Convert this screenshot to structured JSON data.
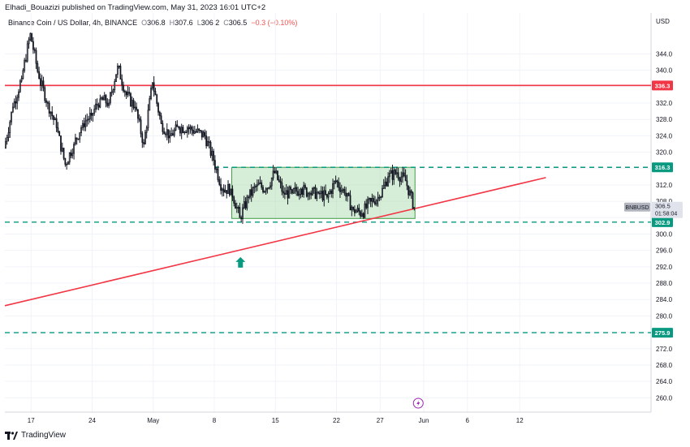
{
  "header": {
    "publisher_text": "Elhadi_Bouazizi published on TradingView.com, May 31, 2023 16:01 UTC+2"
  },
  "legend": {
    "symbol": "Binance Coin / US Dollar, 4h, BINANCE",
    "o_label": "O",
    "o_value": "306.8",
    "h_label": "H",
    "h_value": "307.6",
    "l_label": "L",
    "l_value": "306.2",
    "c_label": "C",
    "c_value": "306.5",
    "change": "−0.3 (−0.10%)"
  },
  "footer": {
    "brand": "TradingView"
  },
  "chart_data": {
    "type": "candlestick",
    "symbol": "BNBUSD",
    "timeframe": "4h",
    "currency_label": "USD",
    "ylim": [
      256.5,
      354
    ],
    "y_ticks": [
      260.0,
      264.0,
      268.0,
      272.0,
      276.0,
      280.0,
      284.0,
      288.0,
      292.0,
      296.0,
      300.0,
      304.0,
      308.0,
      312.0,
      316.0,
      320.0,
      324.0,
      328.0,
      332.0,
      336.0,
      340.0,
      344.0
    ],
    "x_ticks": [
      {
        "label": "17",
        "date": "2023-04-17"
      },
      {
        "label": "24",
        "date": "2023-04-24"
      },
      {
        "label": "May",
        "date": "2023-05-01"
      },
      {
        "label": "8",
        "date": "2023-05-08"
      },
      {
        "label": "15",
        "date": "2023-05-15"
      },
      {
        "label": "22",
        "date": "2023-05-22"
      },
      {
        "label": "27",
        "date": "2023-05-27"
      },
      {
        "label": "Jun",
        "date": "2023-06-01"
      },
      {
        "label": "6",
        "date": "2023-06-06"
      },
      {
        "label": "12",
        "date": "2023-06-12"
      }
    ],
    "last_price": {
      "value": 306.5,
      "label": "306.5",
      "countdown": "01:58:04",
      "tag": "BNBUSD"
    },
    "horizontal_lines": [
      {
        "value": 336.3,
        "label": "336.3",
        "style": "solid",
        "color": "#f23645"
      },
      {
        "value": 316.3,
        "label": "316.3",
        "style": "dashed",
        "color": "#089981"
      },
      {
        "value": 302.9,
        "label": "302.9",
        "style": "dashed",
        "color": "#089981"
      },
      {
        "value": 275.9,
        "label": "275.9",
        "style": "dashed",
        "color": "#089981"
      }
    ],
    "rectangle": {
      "from": "2023-05-10",
      "to": "2023-05-31",
      "top": 316.3,
      "bottom": 303.8,
      "fill": "#a5d6a7"
    },
    "trendline": {
      "from": {
        "date": "2023-04-14",
        "value": 282.5
      },
      "to": {
        "date": "2023-06-15",
        "value": 313.8
      },
      "color": "#f23645"
    },
    "arrow": {
      "date": "2023-05-11",
      "value": 293.0,
      "direction": "up",
      "color": "#089981"
    },
    "closes": [
      {
        "date": "2023-04-14",
        "value": 321.0
      },
      {
        "date": "2023-04-15",
        "value": 331.0
      },
      {
        "date": "2023-04-16",
        "value": 338.0
      },
      {
        "date": "2023-04-17",
        "value": 349.0
      },
      {
        "date": "2023-04-18",
        "value": 338.0
      },
      {
        "date": "2023-04-19",
        "value": 332.0
      },
      {
        "date": "2023-04-20",
        "value": 326.0
      },
      {
        "date": "2023-04-21",
        "value": 317.0
      },
      {
        "date": "2023-04-22",
        "value": 322.0
      },
      {
        "date": "2023-04-23",
        "value": 327.0
      },
      {
        "date": "2023-04-24",
        "value": 329.0
      },
      {
        "date": "2023-04-25",
        "value": 333.0
      },
      {
        "date": "2023-04-26",
        "value": 332.0
      },
      {
        "date": "2023-04-27",
        "value": 341.0
      },
      {
        "date": "2023-04-28",
        "value": 334.0
      },
      {
        "date": "2023-04-29",
        "value": 331.0
      },
      {
        "date": "2023-04-30",
        "value": 322.0
      },
      {
        "date": "2023-05-01",
        "value": 337.0
      },
      {
        "date": "2023-05-02",
        "value": 327.0
      },
      {
        "date": "2023-05-03",
        "value": 324.0
      },
      {
        "date": "2023-05-04",
        "value": 326.0
      },
      {
        "date": "2023-05-05",
        "value": 326.0
      },
      {
        "date": "2023-05-06",
        "value": 325.0
      },
      {
        "date": "2023-05-07",
        "value": 324.0
      },
      {
        "date": "2023-05-08",
        "value": 318.0
      },
      {
        "date": "2023-05-09",
        "value": 311.0
      },
      {
        "date": "2023-05-10",
        "value": 311.0
      },
      {
        "date": "2023-05-11",
        "value": 304.0
      },
      {
        "date": "2023-05-12",
        "value": 309.0
      },
      {
        "date": "2023-05-13",
        "value": 312.0
      },
      {
        "date": "2023-05-14",
        "value": 311.0
      },
      {
        "date": "2023-05-15",
        "value": 315.0
      },
      {
        "date": "2023-05-16",
        "value": 310.0
      },
      {
        "date": "2023-05-17",
        "value": 310.0
      },
      {
        "date": "2023-05-18",
        "value": 311.0
      },
      {
        "date": "2023-05-19",
        "value": 310.0
      },
      {
        "date": "2023-05-20",
        "value": 310.0
      },
      {
        "date": "2023-05-21",
        "value": 309.0
      },
      {
        "date": "2023-05-22",
        "value": 313.0
      },
      {
        "date": "2023-05-23",
        "value": 310.0
      },
      {
        "date": "2023-05-24",
        "value": 306.0
      },
      {
        "date": "2023-05-25",
        "value": 305.0
      },
      {
        "date": "2023-05-26",
        "value": 308.0
      },
      {
        "date": "2023-05-27",
        "value": 309.0
      },
      {
        "date": "2023-05-28",
        "value": 314.0
      },
      {
        "date": "2023-05-29",
        "value": 315.0
      },
      {
        "date": "2023-05-30",
        "value": 313.0
      },
      {
        "date": "2023-05-31",
        "value": 306.5
      }
    ]
  },
  "colors": {
    "up": "#089981",
    "down": "#f23645",
    "candle": "#131722",
    "grid": "#f0f3fa",
    "axis_text": "#131722"
  }
}
